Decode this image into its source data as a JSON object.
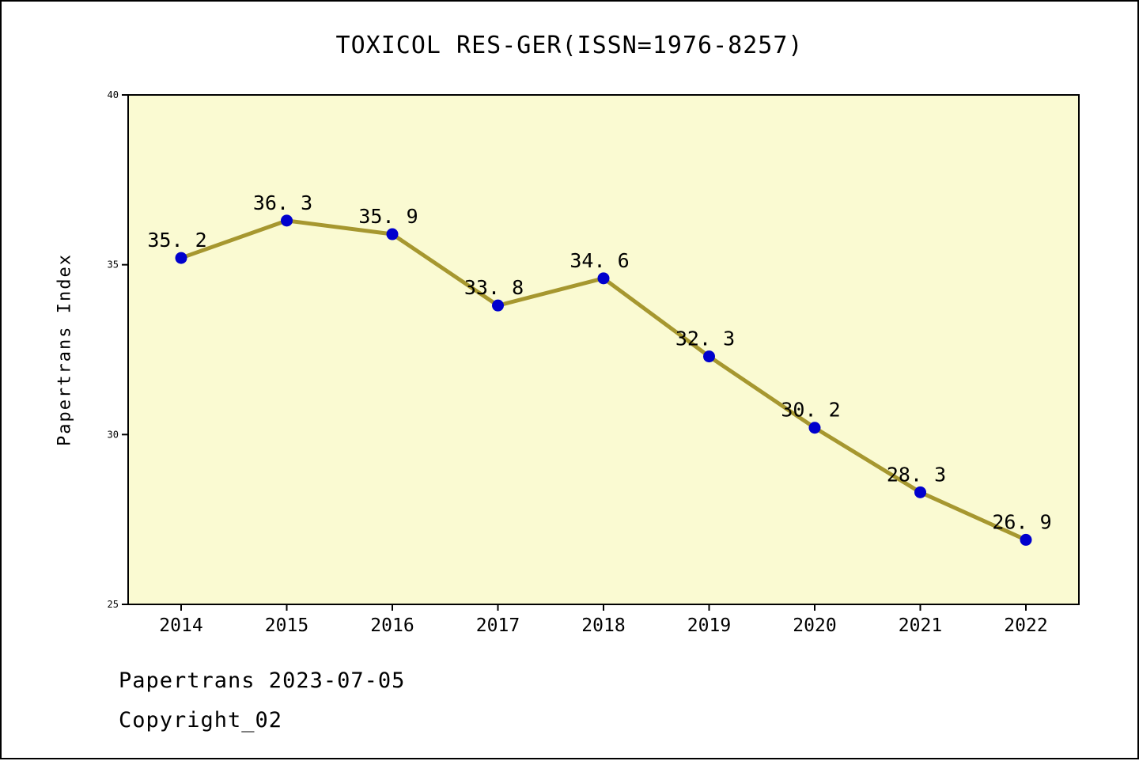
{
  "title": "TOXICOL RES-GER(ISSN=1976-8257)",
  "footer": {
    "line1": "Papertrans 2023-07-05",
    "line2": "Copyright_02"
  },
  "chart_data": {
    "type": "line",
    "title": "TOXICOL RES-GER(ISSN=1976-8257)",
    "x": [
      2014,
      2015,
      2016,
      2017,
      2018,
      2019,
      2020,
      2021,
      2022
    ],
    "values": [
      35.2,
      36.3,
      35.9,
      33.8,
      34.6,
      32.3,
      30.2,
      28.3,
      26.9
    ],
    "point_labels": [
      "35. 2",
      "36. 3",
      "35. 9",
      "33. 8",
      "34. 6",
      "32. 3",
      "30. 2",
      "28. 3",
      "26. 9"
    ],
    "xlabel": "",
    "ylabel": "Papertrans Index",
    "ylim": [
      25,
      40
    ],
    "yticks": [
      25,
      30,
      35,
      40
    ],
    "grid": false,
    "legend": null,
    "colors": {
      "line": "#A6972F",
      "marker": "#0000CD",
      "plot_bg": "#FAFAD2",
      "axis": "#000000",
      "text": "#000000",
      "page_bg": "#FFFFFF"
    }
  }
}
